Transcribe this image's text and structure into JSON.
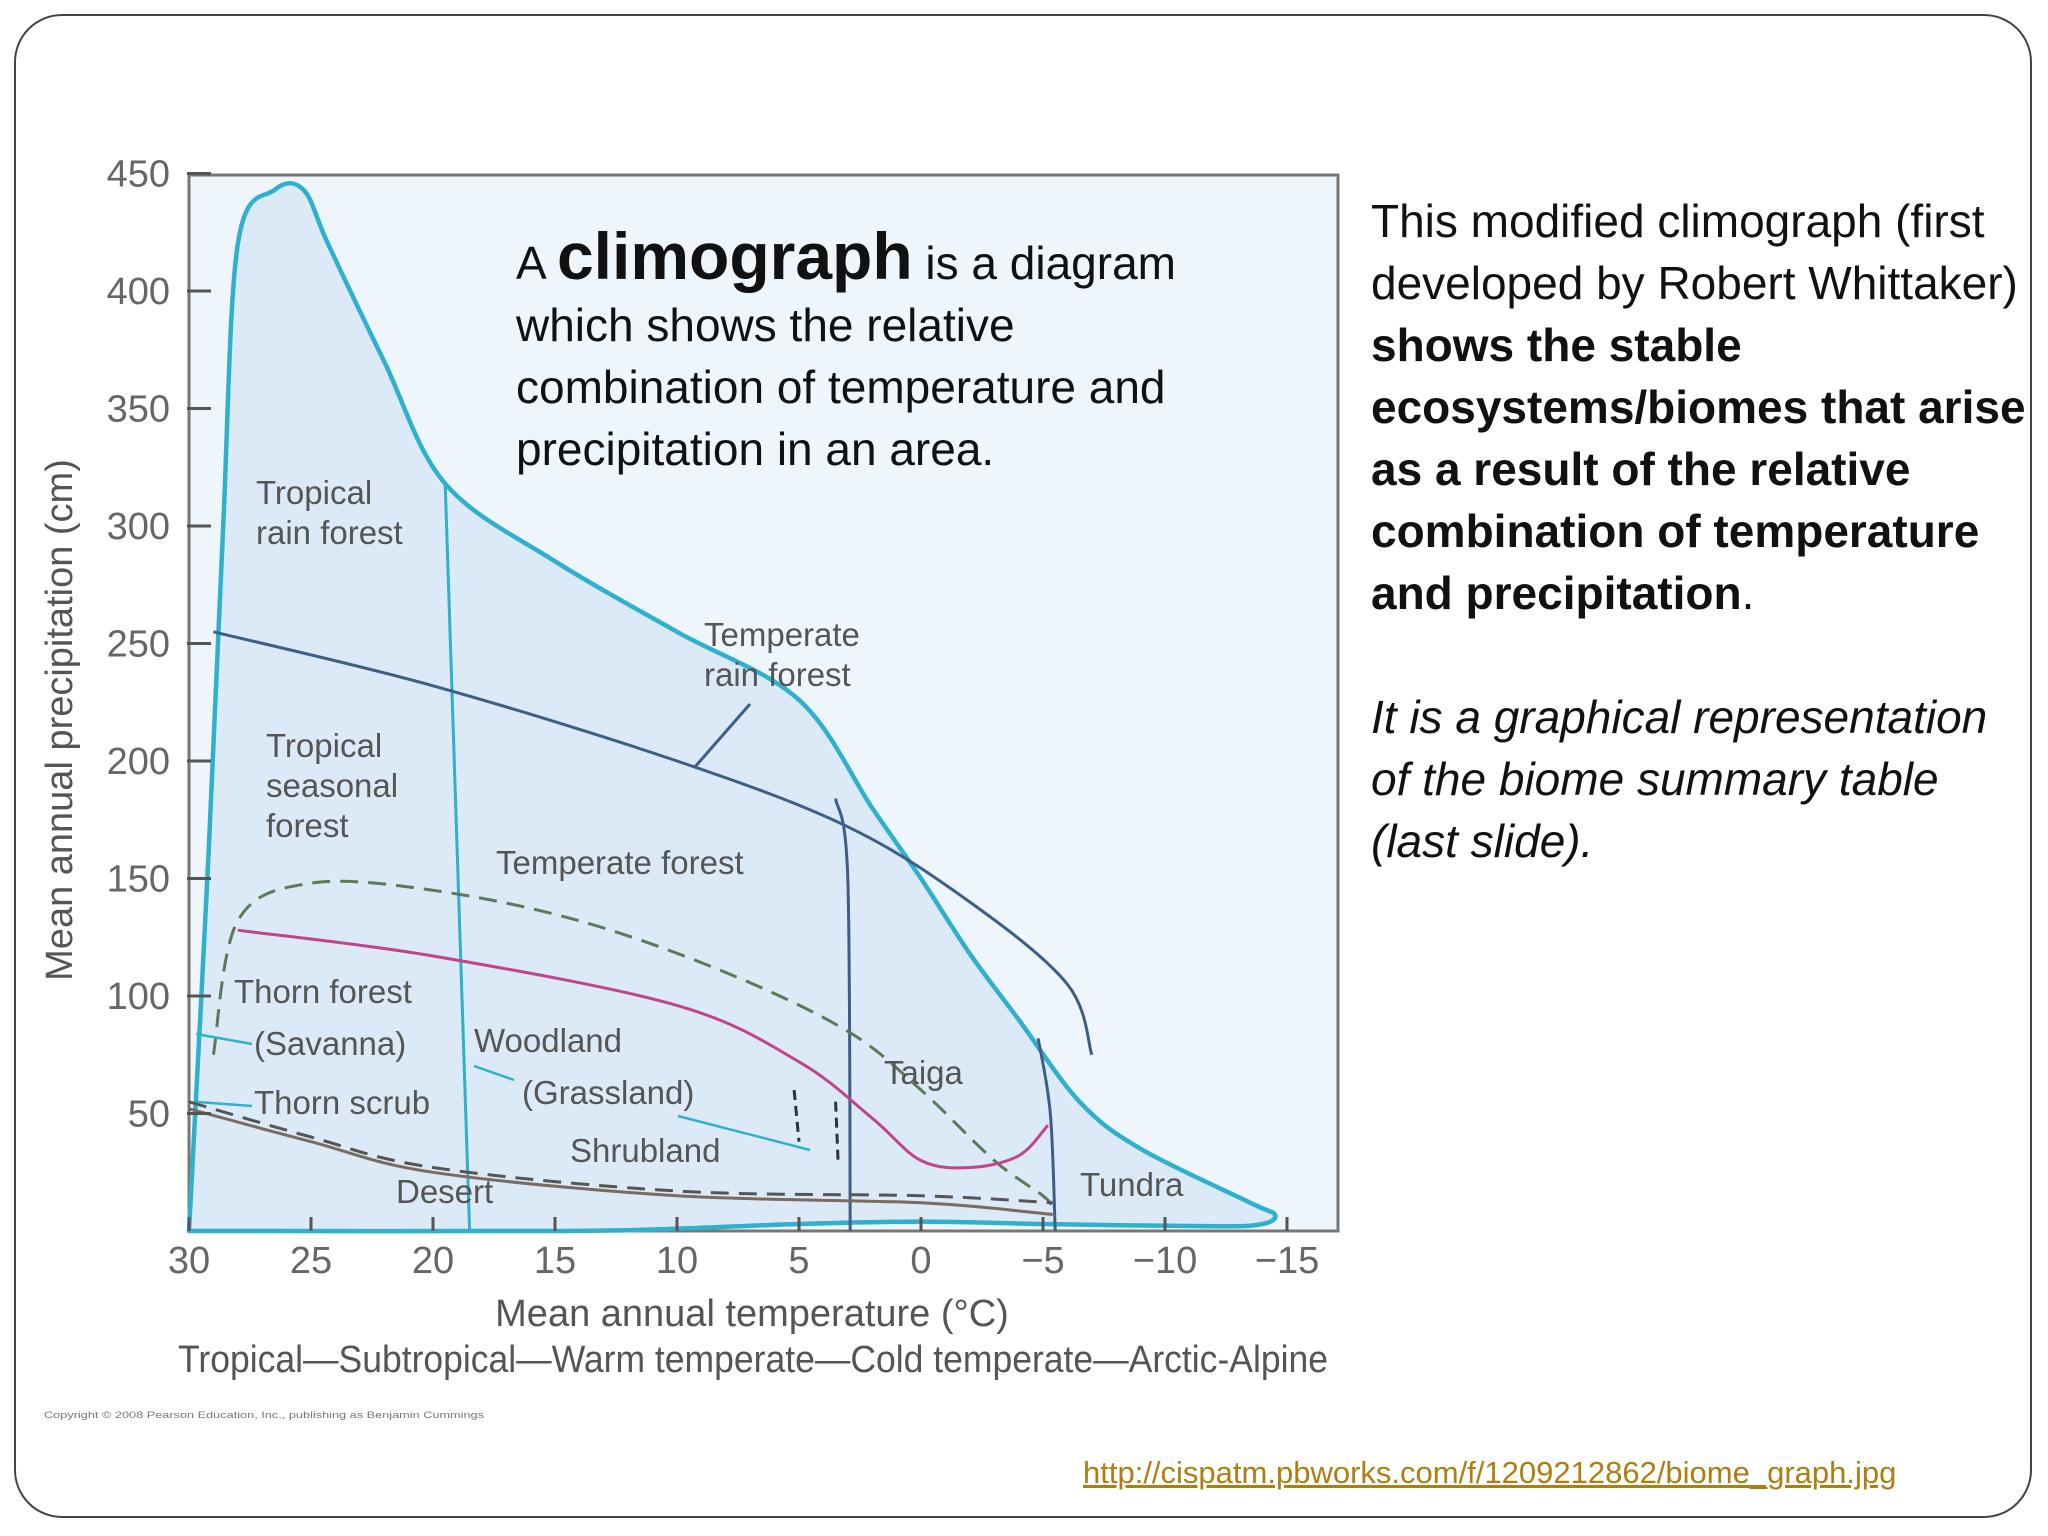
{
  "chart_data": {
    "type": "area",
    "xlabel": "Mean annual temperature (°C)",
    "ylabel": "Mean annual precipitation (cm)",
    "x_ticks": [
      "30",
      "25",
      "20",
      "15",
      "10",
      "5",
      "0",
      "−5",
      "−10",
      "−15"
    ],
    "y_ticks": [
      "50",
      "100",
      "150",
      "200",
      "250",
      "300",
      "350",
      "400",
      "450"
    ],
    "xlim": [
      30,
      -17
    ],
    "ylim": [
      0,
      450
    ],
    "zone_scale": "Tropical—Subtropical—Warm temperate—Cold temperate—Arctic-Alpine",
    "copyright": "Copyright © 2008 Pearson Education, Inc., publishing as Benjamin Cummings",
    "biome_labels": {
      "tropical_rain_forest": [
        "Tropical",
        "rain forest"
      ],
      "temperate_rain_forest": [
        "Temperate",
        "rain forest"
      ],
      "tropical_seasonal_forest": [
        "Tropical",
        "seasonal",
        "forest"
      ],
      "temperate_forest": "Temperate forest",
      "thorn_forest": "Thorn forest",
      "savanna": "(Savanna)",
      "woodland": "Woodland",
      "grassland": "(Grassland)",
      "thorn_scrub": "Thorn scrub",
      "shrubland": "Shrubland",
      "taiga": "Taiga",
      "desert": "Desert",
      "tundra": "Tundra"
    },
    "colors": {
      "outline": "#2fb0cc",
      "fill": "#dbeaf6",
      "boundary": "#3e5e86",
      "dashed": "#5a7a58",
      "woodland_line": "#c0458a",
      "desert_line": "#7a6a60",
      "plot_bg": "#eef5fb"
    },
    "boundaries": {
      "outline": [
        [
          30,
          0
        ],
        [
          29.2,
          160
        ],
        [
          28.6,
          300
        ],
        [
          28,
          420
        ],
        [
          26.5,
          443
        ],
        [
          25.3,
          443
        ],
        [
          24.3,
          420
        ],
        [
          22,
          370
        ],
        [
          19.5,
          318
        ],
        [
          15,
          285
        ],
        [
          10,
          255
        ],
        [
          5,
          226
        ],
        [
          2,
          180
        ],
        [
          0,
          150
        ],
        [
          -2,
          118
        ],
        [
          -4,
          90
        ],
        [
          -6.5,
          55
        ],
        [
          -9,
          35
        ],
        [
          -13.5,
          12
        ],
        [
          -14.5,
          7
        ],
        [
          -14,
          3
        ],
        [
          -12,
          2
        ],
        [
          -5,
          3
        ],
        [
          0,
          4
        ],
        [
          5,
          3
        ],
        [
          10,
          1
        ],
        [
          15,
          0
        ],
        [
          30,
          0
        ]
      ],
      "tropical_rf_split": [
        [
          19.5,
          318
        ],
        [
          18.5,
          0
        ]
      ],
      "rainforest_forest_split": [
        [
          29,
          255
        ],
        [
          20,
          232
        ],
        [
          10,
          200
        ],
        [
          3,
          172
        ],
        [
          -2,
          140
        ],
        [
          -6,
          105
        ],
        [
          -7,
          75
        ]
      ],
      "temperate_rf_taiga_split": [
        [
          3.5,
          184
        ],
        [
          3,
          150
        ],
        [
          2.9,
          0
        ]
      ],
      "taiga_tundra_split": [
        [
          -4.8,
          82
        ],
        [
          -5.3,
          50
        ],
        [
          -5.5,
          0
        ]
      ],
      "dashed_upper": [
        [
          29,
          75
        ],
        [
          28,
          132
        ],
        [
          25,
          148
        ],
        [
          20,
          145
        ],
        [
          14,
          132
        ],
        [
          8,
          110
        ],
        [
          3,
          85
        ],
        [
          0,
          60
        ],
        [
          -3,
          30
        ],
        [
          -5,
          15
        ],
        [
          -5.4,
          10
        ]
      ],
      "woodland_grassland": [
        [
          28,
          128
        ],
        [
          20,
          117
        ],
        [
          10,
          96
        ],
        [
          5,
          72
        ],
        [
          2,
          48
        ],
        [
          0,
          30
        ],
        [
          -2,
          27
        ],
        [
          -4,
          32
        ],
        [
          -5.2,
          45
        ]
      ],
      "dashed_lower": [
        [
          30,
          55
        ],
        [
          25,
          40
        ],
        [
          20,
          27
        ],
        [
          10,
          17
        ],
        [
          0,
          15
        ],
        [
          -5.4,
          12
        ]
      ],
      "desert_edge": [
        [
          30,
          52
        ],
        [
          25,
          38
        ],
        [
          20,
          25
        ],
        [
          10,
          15
        ],
        [
          0,
          12
        ],
        [
          -5.4,
          7
        ]
      ],
      "grassland_shrubland": [
        [
          5.2,
          60
        ],
        [
          5,
          38
        ],
        [
          3.5,
          55
        ],
        [
          3.4,
          30
        ]
      ]
    }
  },
  "overlay": {
    "pre": "A ",
    "keyword": "climograph",
    "post": " is a diagram which shows the relative combination of temperature and precipitation in an area."
  },
  "side": {
    "p1_normal": "This modified climograph (first developed by Robert Whittaker) ",
    "p1_bold": "shows the stable ecosystems/biomes that arise as a result of the relative combination of temperature and precipitation",
    "p1_end": ".",
    "p2_italic": "It is a graphical representation of the biome summary table (last slide)."
  },
  "source_link": "http://cispatm.pbworks.com/f/1209212862/biome_graph.jpg"
}
